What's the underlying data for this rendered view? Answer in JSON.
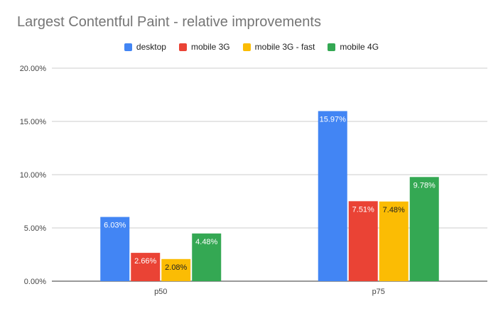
{
  "chart_data": {
    "type": "bar",
    "title": "Largest Contentful Paint - relative improvements",
    "xlabel": "",
    "ylabel": "",
    "categories": [
      "p50",
      "p75"
    ],
    "ylim": [
      0,
      20
    ],
    "yticks": [
      "0.00%",
      "5.00%",
      "10.00%",
      "15.00%",
      "20.00%"
    ],
    "ytick_values": [
      0,
      5,
      10,
      15,
      20
    ],
    "grid": true,
    "legend_position": "top",
    "series": [
      {
        "name": "desktop",
        "color": "#4285f4",
        "values": [
          6.03,
          15.97
        ],
        "labels": [
          "6.03%",
          "15.97%"
        ]
      },
      {
        "name": "mobile 3G",
        "color": "#ea4335",
        "values": [
          2.66,
          7.51
        ],
        "labels": [
          "2.66%",
          "7.51%"
        ]
      },
      {
        "name": "mobile 3G - fast",
        "color": "#fbbc04",
        "values": [
          2.08,
          7.48
        ],
        "labels": [
          "2.08%",
          "7.48%"
        ]
      },
      {
        "name": "mobile 4G",
        "color": "#34a853",
        "values": [
          4.48,
          9.78
        ],
        "labels": [
          "4.48%",
          "9.78%"
        ]
      }
    ]
  }
}
